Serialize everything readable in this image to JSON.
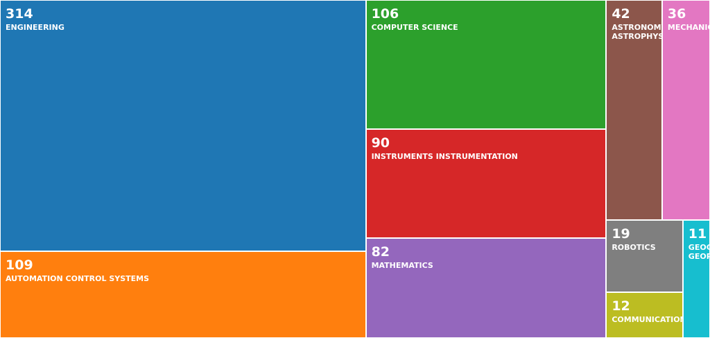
{
  "chart_data": {
    "type": "treemap",
    "categories": [
      "ENGINEERING",
      "AUTOMATION CONTROL SYSTEMS",
      "COMPUTER SCIENCE",
      "INSTRUMENTS INSTRUMENTATION",
      "MATHEMATICS",
      "ASTRONOMY ASTROPHYSICS",
      "MECHANICS",
      "ROBOTICS",
      "COMMUNICATION",
      "GEOCHEMISTRY GEOPHYSICS"
    ],
    "values": [
      314,
      109,
      106,
      90,
      82,
      42,
      36,
      19,
      12,
      11
    ],
    "colors": [
      "#1f77b4",
      "#ff7f0e",
      "#2ca02c",
      "#d62728",
      "#9467bd",
      "#8c564b",
      "#e377c2",
      "#7f7f7f",
      "#bcbd22",
      "#17becf"
    ]
  }
}
